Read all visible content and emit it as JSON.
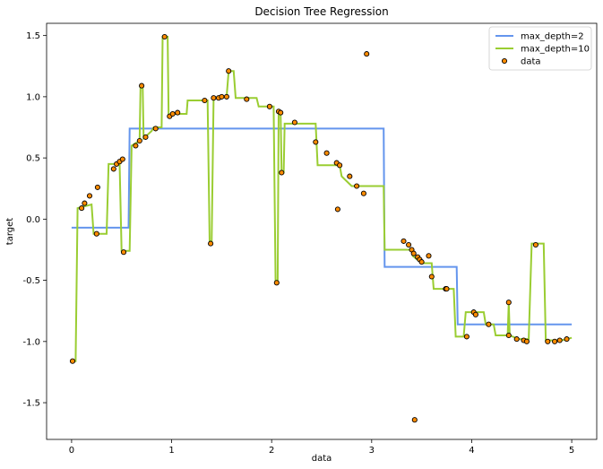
{
  "chart_data": {
    "type": "line",
    "title": "Decision Tree Regression",
    "xlabel": "data",
    "ylabel": "target",
    "xlim": [
      -0.25,
      5.25
    ],
    "ylim": [
      -1.8,
      1.6
    ],
    "xticks": [
      "0",
      "1",
      "2",
      "3",
      "4",
      "5"
    ],
    "yticks": [
      "-1.5",
      "-1.0",
      "-0.5",
      "0.0",
      "0.5",
      "1.0",
      "1.5"
    ],
    "legend_position": "upper right",
    "series": [
      {
        "name": "max_depth=2",
        "kind": "step",
        "color": "#6495ed",
        "points": [
          [
            0.0,
            -0.07
          ],
          [
            0.57,
            -0.07
          ],
          [
            0.58,
            0.74
          ],
          [
            3.12,
            0.74
          ],
          [
            3.13,
            -0.39
          ],
          [
            3.85,
            -0.39
          ],
          [
            3.86,
            -0.86
          ],
          [
            5.0,
            -0.86
          ]
        ]
      },
      {
        "name": "max_depth=10",
        "kind": "step",
        "color": "#9acd32",
        "points": [
          [
            0.0,
            -1.16
          ],
          [
            0.04,
            -1.16
          ],
          [
            0.06,
            0.09
          ],
          [
            0.2,
            0.12
          ],
          [
            0.22,
            -0.12
          ],
          [
            0.35,
            -0.12
          ],
          [
            0.37,
            0.45
          ],
          [
            0.48,
            0.45
          ],
          [
            0.5,
            -0.26
          ],
          [
            0.58,
            -0.26
          ],
          [
            0.6,
            0.6
          ],
          [
            0.68,
            0.64
          ],
          [
            0.69,
            1.1
          ],
          [
            0.71,
            1.1
          ],
          [
            0.72,
            0.66
          ],
          [
            0.8,
            0.72
          ],
          [
            0.82,
            0.75
          ],
          [
            0.9,
            0.75
          ],
          [
            0.91,
            1.49
          ],
          [
            0.96,
            1.49
          ],
          [
            0.97,
            0.84
          ],
          [
            1.02,
            0.86
          ],
          [
            1.04,
            0.86
          ],
          [
            1.15,
            0.86
          ],
          [
            1.16,
            0.97
          ],
          [
            1.36,
            0.97
          ],
          [
            1.38,
            -0.2
          ],
          [
            1.4,
            -0.2
          ],
          [
            1.42,
            0.99
          ],
          [
            1.55,
            1.0
          ],
          [
            1.57,
            1.21
          ],
          [
            1.62,
            1.21
          ],
          [
            1.64,
            0.99
          ],
          [
            1.85,
            0.99
          ],
          [
            1.87,
            0.92
          ],
          [
            2.02,
            0.92
          ],
          [
            2.04,
            -0.52
          ],
          [
            2.06,
            -0.52
          ],
          [
            2.07,
            0.88
          ],
          [
            2.09,
            0.86
          ],
          [
            2.1,
            0.38
          ],
          [
            2.12,
            0.38
          ],
          [
            2.13,
            0.78
          ],
          [
            2.44,
            0.78
          ],
          [
            2.46,
            0.44
          ],
          [
            2.68,
            0.44
          ],
          [
            2.7,
            0.35
          ],
          [
            2.8,
            0.27
          ],
          [
            3.12,
            0.27
          ],
          [
            3.13,
            -0.25
          ],
          [
            3.4,
            -0.25
          ],
          [
            3.41,
            -0.3
          ],
          [
            3.5,
            -0.36
          ],
          [
            3.6,
            -0.36
          ],
          [
            3.62,
            -0.57
          ],
          [
            3.82,
            -0.57
          ],
          [
            3.84,
            -0.96
          ],
          [
            3.92,
            -0.96
          ],
          [
            3.94,
            -0.76
          ],
          [
            4.12,
            -0.76
          ],
          [
            4.14,
            -0.86
          ],
          [
            4.22,
            -0.86
          ],
          [
            4.24,
            -0.95
          ],
          [
            4.36,
            -0.95
          ],
          [
            4.37,
            -0.68
          ],
          [
            4.38,
            -0.95
          ],
          [
            4.47,
            -0.98
          ],
          [
            4.57,
            -0.98
          ],
          [
            4.6,
            -0.2
          ],
          [
            4.72,
            -0.2
          ],
          [
            4.74,
            -0.99
          ],
          [
            4.9,
            -0.99
          ],
          [
            5.0,
            -0.97
          ]
        ]
      },
      {
        "name": "data",
        "kind": "scatter",
        "color": "#ff8c00",
        "points": [
          [
            0.01,
            -1.16
          ],
          [
            0.1,
            0.09
          ],
          [
            0.13,
            0.13
          ],
          [
            0.18,
            0.19
          ],
          [
            0.25,
            -0.12
          ],
          [
            0.26,
            0.26
          ],
          [
            0.42,
            0.41
          ],
          [
            0.45,
            0.45
          ],
          [
            0.48,
            0.47
          ],
          [
            0.51,
            0.49
          ],
          [
            0.52,
            -0.27
          ],
          [
            0.64,
            0.6
          ],
          [
            0.68,
            0.64
          ],
          [
            0.7,
            1.09
          ],
          [
            0.74,
            0.67
          ],
          [
            0.84,
            0.74
          ],
          [
            0.93,
            1.49
          ],
          [
            0.98,
            0.84
          ],
          [
            1.01,
            0.86
          ],
          [
            1.06,
            0.87
          ],
          [
            1.33,
            0.97
          ],
          [
            1.39,
            -0.2
          ],
          [
            1.42,
            0.99
          ],
          [
            1.47,
            0.99
          ],
          [
            1.5,
            1.0
          ],
          [
            1.55,
            1.0
          ],
          [
            1.57,
            1.21
          ],
          [
            1.75,
            0.98
          ],
          [
            1.98,
            0.92
          ],
          [
            2.05,
            -0.52
          ],
          [
            2.07,
            0.88
          ],
          [
            2.09,
            0.87
          ],
          [
            2.1,
            0.38
          ],
          [
            2.23,
            0.79
          ],
          [
            2.44,
            0.63
          ],
          [
            2.55,
            0.54
          ],
          [
            2.65,
            0.46
          ],
          [
            2.66,
            0.08
          ],
          [
            2.68,
            0.44
          ],
          [
            2.78,
            0.35
          ],
          [
            2.85,
            0.27
          ],
          [
            2.92,
            0.21
          ],
          [
            2.95,
            1.35
          ],
          [
            3.32,
            -0.18
          ],
          [
            3.37,
            -0.21
          ],
          [
            3.4,
            -0.25
          ],
          [
            3.42,
            -0.28
          ],
          [
            3.43,
            -1.64
          ],
          [
            3.46,
            -0.31
          ],
          [
            3.48,
            -0.33
          ],
          [
            3.5,
            -0.35
          ],
          [
            3.57,
            -0.3
          ],
          [
            3.6,
            -0.47
          ],
          [
            3.74,
            -0.57
          ],
          [
            3.75,
            -0.57
          ],
          [
            3.95,
            -0.96
          ],
          [
            4.02,
            -0.76
          ],
          [
            4.04,
            -0.78
          ],
          [
            4.17,
            -0.86
          ],
          [
            4.37,
            -0.68
          ],
          [
            4.37,
            -0.95
          ],
          [
            4.45,
            -0.98
          ],
          [
            4.52,
            -0.99
          ],
          [
            4.55,
            -1.0
          ],
          [
            4.64,
            -0.21
          ],
          [
            4.76,
            -1.0
          ],
          [
            4.83,
            -1.0
          ],
          [
            4.88,
            -0.99
          ],
          [
            4.95,
            -0.98
          ]
        ]
      }
    ]
  }
}
